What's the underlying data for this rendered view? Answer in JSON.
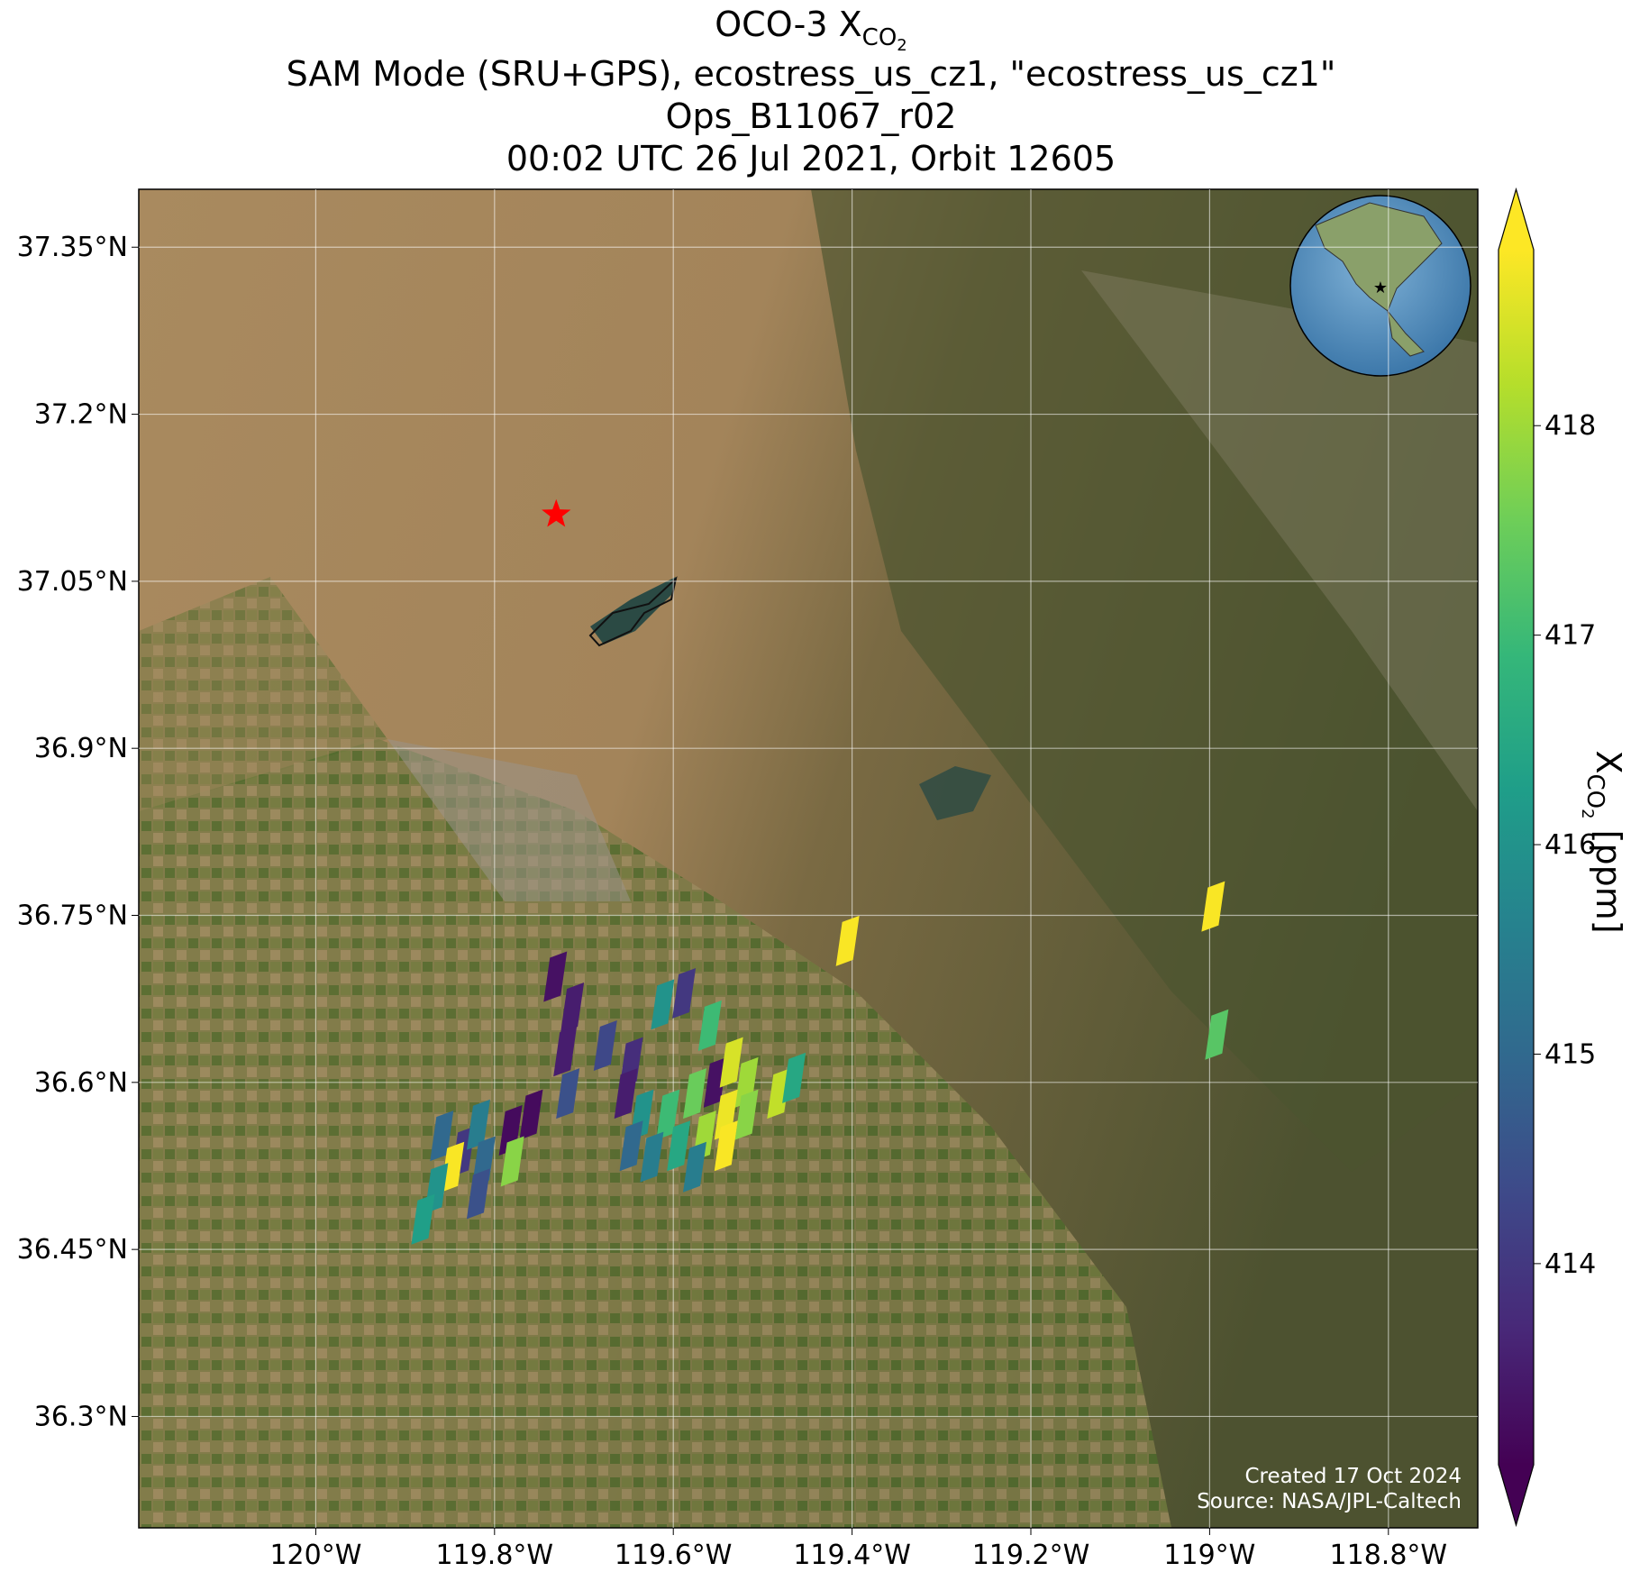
{
  "chart_data": {
    "type": "map",
    "title_parts": [
      "OCO-3 X",
      "CO",
      "2"
    ],
    "subtitle_lines": [
      "SAM Mode (SRU+GPS), ecostress_us_cz1, \"ecostress_us_cz1\"",
      "Ops_B11067_r02",
      "00:02 UTC 26 Jul 2021, Orbit 12605"
    ],
    "xlim": [
      -120.198,
      -118.7
    ],
    "ylim": [
      36.2,
      37.402
    ],
    "xticks": [
      {
        "value": -120,
        "label": "120°W"
      },
      {
        "value": -119.8,
        "label": "119.8°W"
      },
      {
        "value": -119.6,
        "label": "119.6°W"
      },
      {
        "value": -119.4,
        "label": "119.4°W"
      },
      {
        "value": -119.2,
        "label": "119.2°W"
      },
      {
        "value": -119,
        "label": "119°W"
      },
      {
        "value": -118.8,
        "label": "118.8°W"
      }
    ],
    "yticks": [
      {
        "value": 37.35,
        "label": "37.35°N"
      },
      {
        "value": 37.2,
        "label": "37.2°N"
      },
      {
        "value": 37.05,
        "label": "37.05°N"
      },
      {
        "value": 36.9,
        "label": "36.9°N"
      },
      {
        "value": 36.75,
        "label": "36.75°N"
      },
      {
        "value": 36.6,
        "label": "36.6°N"
      },
      {
        "value": 36.45,
        "label": "36.45°N"
      },
      {
        "value": 36.3,
        "label": "36.3°N"
      }
    ],
    "grid": true,
    "colormap": "viridis",
    "clim": [
      413.04,
      418.84
    ],
    "cticks": [
      414,
      415,
      416,
      417,
      418
    ],
    "colorbar_label_parts": [
      "X",
      "CO",
      "2",
      " [ppm]"
    ],
    "target": {
      "lon": -119.731,
      "lat": 37.11,
      "color": "#ff0000"
    },
    "soundings": {
      "lon": [
        -119.405,
        -118.996,
        -118.992,
        -119.732,
        -119.713,
        -119.721,
        -119.718,
        -119.676,
        -119.647,
        -119.612,
        -119.588,
        -119.559,
        -119.653,
        -119.635,
        -119.606,
        -119.576,
        -119.553,
        -119.535,
        -119.518,
        -119.541,
        -119.565,
        -119.594,
        -119.624,
        -119.647,
        -119.518,
        -119.482,
        -119.465,
        -119.541,
        -119.576,
        -119.859,
        -119.835,
        -119.818,
        -119.782,
        -119.759,
        -119.847,
        -119.865,
        -119.78,
        -119.812,
        -119.818,
        -119.88
      ],
      "lat": [
        36.727,
        36.758,
        36.643,
        36.695,
        36.667,
        36.628,
        36.59,
        36.633,
        36.618,
        36.67,
        36.68,
        36.651,
        36.59,
        36.571,
        36.571,
        36.59,
        36.6,
        36.618,
        36.6,
        36.571,
        36.552,
        36.543,
        36.533,
        36.543,
        36.571,
        36.59,
        36.604,
        36.543,
        36.524,
        36.552,
        36.538,
        36.562,
        36.557,
        36.571,
        36.524,
        36.505,
        36.529,
        36.529,
        36.5,
        36.477
      ],
      "values": [
        418.8,
        418.8,
        417.3,
        413.3,
        413.5,
        413.5,
        414.5,
        414.3,
        413.8,
        416,
        414,
        417,
        413.5,
        416,
        417,
        417.5,
        413.3,
        418.5,
        418,
        418.7,
        418,
        416.5,
        415.5,
        415,
        417.8,
        418.3,
        416.5,
        418.8,
        415.5,
        415,
        414,
        415.5,
        413.2,
        413.2,
        418.8,
        416,
        417.8,
        415,
        414.5,
        416.3
      ]
    },
    "credit_lines": [
      "Created 17 Oct 2024",
      "Source: NASA/JPL-Caltech"
    ]
  }
}
